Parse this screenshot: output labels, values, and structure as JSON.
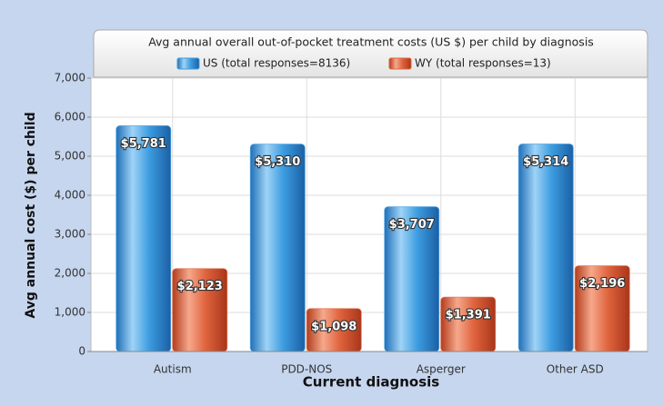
{
  "chart_data": {
    "type": "bar",
    "title": "Avg annual overall out-of-pocket treatment costs (US $) per child by diagnosis",
    "x_label": "Current diagnosis",
    "y_label": "Avg annual cost ($) per child",
    "categories": [
      "Autism",
      "PDD-NOS",
      "Asperger",
      "Other ASD"
    ],
    "series": [
      {
        "name": "US (total responses=8136)",
        "color": "#3d9de0",
        "values": [
          5781,
          5310,
          3707,
          5314
        ],
        "value_labels": [
          "$5,781",
          "$5,310",
          "$3,707",
          "$5,314"
        ]
      },
      {
        "name": "WY (total responses=13)",
        "color": "#e0643e",
        "values": [
          2123,
          1098,
          1391,
          2196
        ],
        "value_labels": [
          "$2,123",
          "$1,098",
          "$1,391",
          "$2,196"
        ]
      }
    ],
    "ylim": [
      0,
      7000
    ],
    "yticks": [
      0,
      {
        "value": 1000,
        "label": "1,000"
      },
      {
        "value": 2000,
        "label": "2,000"
      },
      {
        "value": 3000,
        "label": "3,000"
      },
      {
        "value": 4000,
        "label": "4,000"
      },
      {
        "value": 5000,
        "label": "5,000"
      },
      {
        "value": 6000,
        "label": "6,000"
      },
      {
        "value": 7000,
        "label": "7,000"
      }
    ],
    "grid": true
  }
}
